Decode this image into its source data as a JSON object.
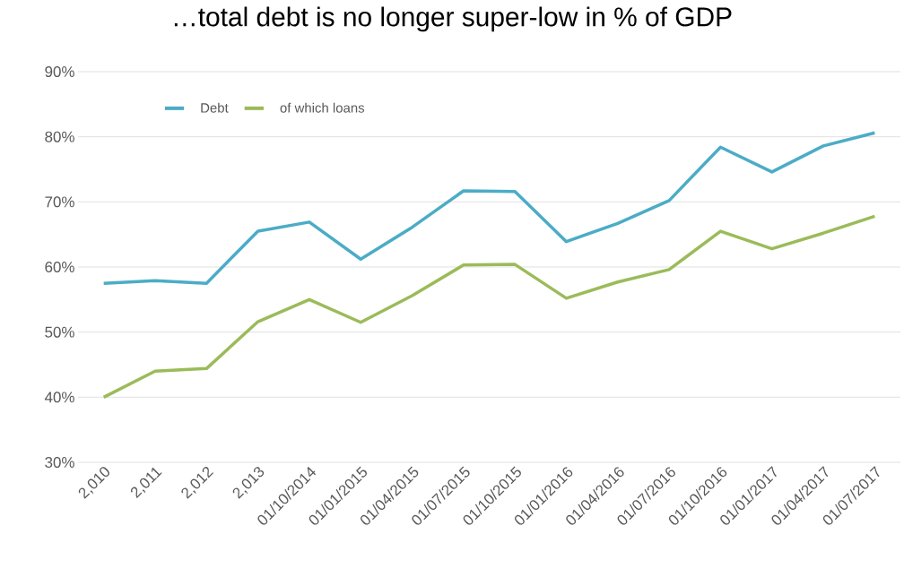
{
  "chart_data": {
    "type": "line",
    "title": "…total debt is no longer super-low in % of GDP",
    "categories": [
      "2,010",
      "2,011",
      "2,012",
      "2,013",
      "01/10/2014",
      "01/01/2015",
      "01/04/2015",
      "01/07/2015",
      "01/10/2015",
      "01/01/2016",
      "01/04/2016",
      "01/07/2016",
      "01/10/2016",
      "01/01/2017",
      "01/04/2017",
      "01/07/2017"
    ],
    "series": [
      {
        "name": "Debt",
        "color": "#4bacc6",
        "values": [
          57.5,
          57.9,
          57.5,
          65.5,
          66.9,
          61.2,
          66.1,
          71.7,
          71.6,
          63.9,
          66.7,
          70.2,
          78.4,
          74.6,
          78.6,
          80.6
        ]
      },
      {
        "name": "of which loans",
        "color": "#9bbb59",
        "values": [
          40.0,
          44.0,
          44.4,
          51.6,
          55.0,
          51.5,
          55.6,
          60.3,
          60.4,
          55.2,
          57.7,
          59.6,
          65.5,
          62.8,
          65.2,
          67.8
        ]
      }
    ],
    "ylim": [
      30,
      90
    ],
    "yticks": [
      {
        "value": 30,
        "label": "30%"
      },
      {
        "value": 40,
        "label": "40%"
      },
      {
        "value": 50,
        "label": "50%"
      },
      {
        "value": 60,
        "label": "60%"
      },
      {
        "value": 70,
        "label": "70%"
      },
      {
        "value": 80,
        "label": "80%"
      },
      {
        "value": 90,
        "label": "90%"
      }
    ],
    "grid": "y",
    "legend": "top left",
    "marker": "none",
    "line_style": "solid"
  }
}
